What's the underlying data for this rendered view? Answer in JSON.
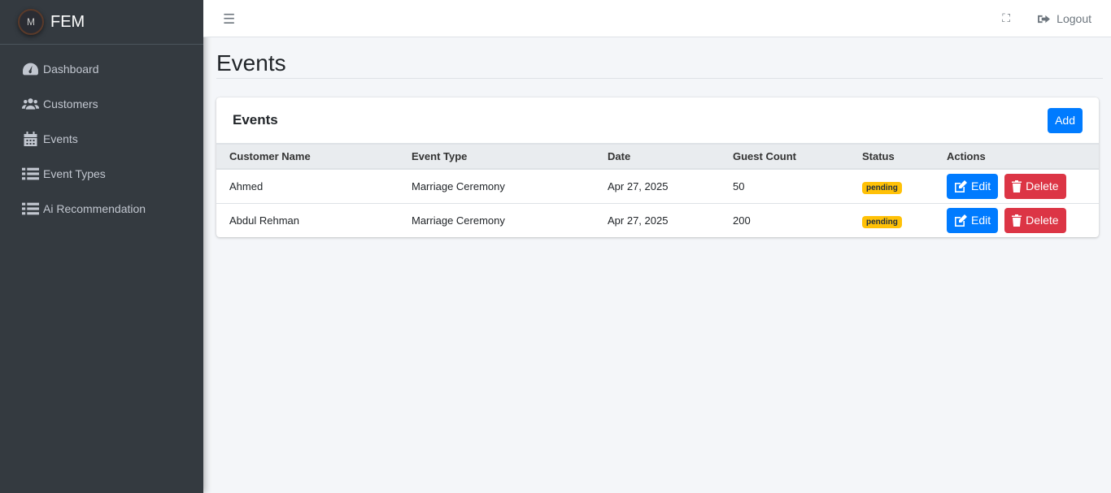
{
  "brand": {
    "name": "FEM",
    "logo_text": "M"
  },
  "sidebar": {
    "items": [
      {
        "label": "Dashboard",
        "icon": "tachometer-icon"
      },
      {
        "label": "Customers",
        "icon": "users-icon"
      },
      {
        "label": "Events",
        "icon": "calendar-icon"
      },
      {
        "label": "Event Types",
        "icon": "list-icon"
      },
      {
        "label": "Ai Recommendation",
        "icon": "list-icon"
      }
    ]
  },
  "topbar": {
    "menu_icon": "☰",
    "expand_icon": "⛶",
    "logout_label": "Logout"
  },
  "page": {
    "title": "Events"
  },
  "card": {
    "title": "Events",
    "add_label": "Add",
    "columns": [
      "Customer Name",
      "Event Type",
      "Date",
      "Guest Count",
      "Status",
      "Actions"
    ],
    "rows": [
      {
        "customer": "Ahmed",
        "type": "Marriage Ceremony",
        "date": "Apr 27, 2025",
        "guests": "50",
        "status": "pending"
      },
      {
        "customer": "Abdul Rehman",
        "type": "Marriage Ceremony",
        "date": "Apr 27, 2025",
        "guests": "200",
        "status": "pending"
      }
    ],
    "edit_label": "Edit",
    "delete_label": "Delete"
  },
  "colors": {
    "sidebar": "#343a40",
    "primary": "#007bff",
    "danger": "#dc3545",
    "warning": "#ffc107"
  }
}
